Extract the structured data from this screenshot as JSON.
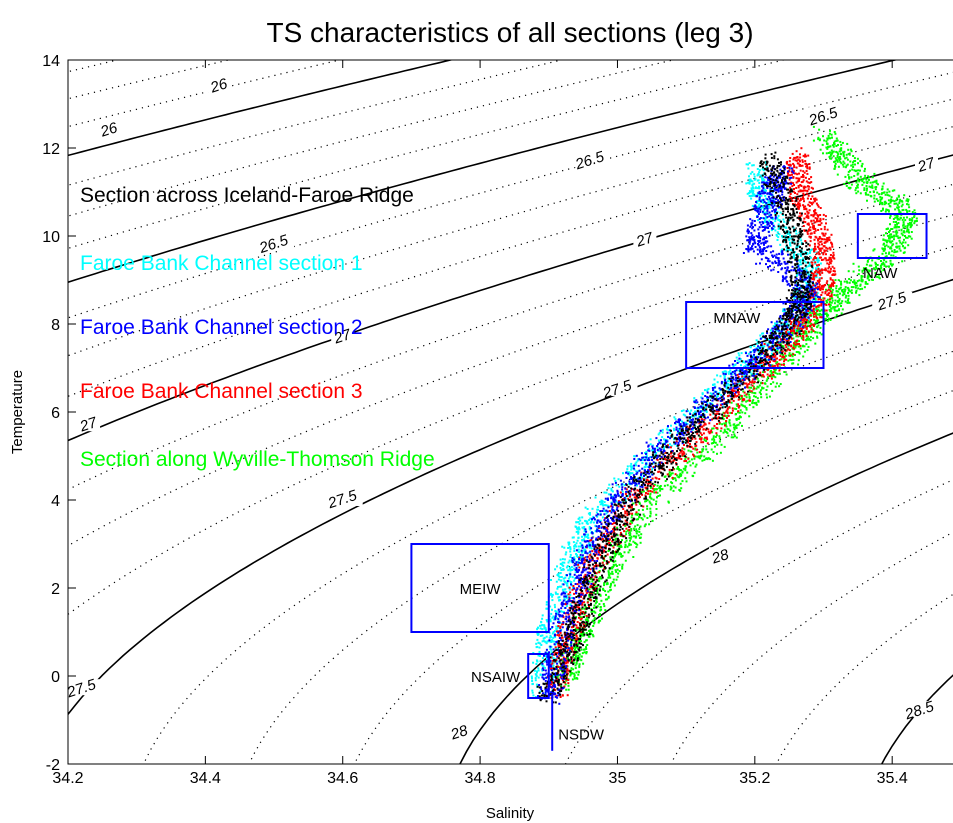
{
  "colors": {
    "section_1": "#00ffff",
    "section_2": "#0000ff",
    "section_3": "#ff0000",
    "section_4": "#00ff00",
    "section_0": "#000000",
    "boxes": "#0000ff"
  },
  "chart_data": {
    "type": "scatter",
    "title": "TS characteristics of all sections (leg 3)",
    "xlabel": "Salinity",
    "ylabel": "Temperature",
    "xlim": [
      34.2,
      35.49
    ],
    "ylim": [
      -2,
      14
    ],
    "xticks": [
      "34.2",
      "34.4",
      "34.6",
      "34.8",
      "35",
      "35.2",
      "35.4"
    ],
    "yticks": [
      "-2",
      "0",
      "2",
      "4",
      "6",
      "8",
      "10",
      "12",
      "14"
    ],
    "grid": false,
    "legend_placement": "upper-left",
    "series": [
      {
        "name": "Section across Iceland-Faroe Ridge",
        "color_key": "section_0",
        "path": [
          [
            34.9,
            -0.5
          ],
          [
            34.94,
            1.0
          ],
          [
            34.97,
            2.5
          ],
          [
            35.02,
            4.0
          ],
          [
            35.1,
            5.5
          ],
          [
            35.2,
            7.0
          ],
          [
            35.26,
            8.2
          ],
          [
            35.27,
            9.0
          ],
          [
            35.25,
            10.5
          ],
          [
            35.22,
            11.8
          ]
        ]
      },
      {
        "name": "Faroe Bank Channel section 1",
        "color_key": "section_1",
        "path": [
          [
            34.89,
            -0.3
          ],
          [
            34.9,
            1.0
          ],
          [
            34.93,
            2.5
          ],
          [
            34.96,
            3.5
          ],
          [
            35.05,
            5.0
          ],
          [
            35.15,
            6.5
          ],
          [
            35.22,
            7.5
          ],
          [
            35.27,
            8.3
          ],
          [
            35.28,
            9.3
          ],
          [
            35.22,
            10.5
          ],
          [
            35.2,
            11.5
          ]
        ]
      },
      {
        "name": "Faroe Bank Channel section 2",
        "color_key": "section_2",
        "path": [
          [
            34.9,
            -0.5
          ],
          [
            34.92,
            1.0
          ],
          [
            34.95,
            2.5
          ],
          [
            35.0,
            4.0
          ],
          [
            35.08,
            5.5
          ],
          [
            35.17,
            6.7
          ],
          [
            35.24,
            7.8
          ],
          [
            35.28,
            8.8
          ],
          [
            35.2,
            9.8
          ],
          [
            35.22,
            10.8
          ],
          [
            35.24,
            11.5
          ]
        ]
      },
      {
        "name": "Faroe Bank Channel section 3",
        "color_key": "section_3",
        "path": [
          [
            34.91,
            -0.4
          ],
          [
            34.93,
            1.0
          ],
          [
            34.96,
            2.5
          ],
          [
            35.02,
            4.0
          ],
          [
            35.12,
            5.5
          ],
          [
            35.2,
            6.8
          ],
          [
            35.26,
            7.8
          ],
          [
            35.3,
            8.8
          ],
          [
            35.3,
            9.8
          ],
          [
            35.27,
            10.8
          ],
          [
            35.26,
            11.8
          ]
        ]
      },
      {
        "name": "Section along Wyville-Thomson Ridge",
        "color_key": "section_4",
        "path": [
          [
            34.92,
            -0.2
          ],
          [
            34.95,
            1.0
          ],
          [
            34.99,
            2.5
          ],
          [
            35.05,
            4.0
          ],
          [
            35.15,
            5.5
          ],
          [
            35.22,
            6.8
          ],
          [
            35.28,
            7.9
          ],
          [
            35.33,
            8.8
          ],
          [
            35.4,
            9.6
          ],
          [
            35.42,
            10.5
          ],
          [
            35.35,
            11.3
          ],
          [
            35.3,
            12.3
          ]
        ]
      }
    ],
    "water_masses": [
      {
        "label": "MEIW",
        "s": [
          34.7,
          34.9
        ],
        "t": [
          1.0,
          3.0
        ]
      },
      {
        "label": "NSAIW",
        "s": [
          34.87,
          34.9
        ],
        "t": [
          -0.5,
          0.5
        ]
      },
      {
        "label": "NSDW",
        "s": [
          34.905,
          34.905
        ],
        "t": [
          -1.7,
          -0.4
        ]
      },
      {
        "label": "MNAW",
        "s": [
          35.1,
          35.3
        ],
        "t": [
          7.0,
          8.5
        ]
      },
      {
        "label": "NAW",
        "s": [
          35.35,
          35.45
        ],
        "t": [
          9.5,
          10.5
        ]
      }
    ],
    "isopycnal_labels": [
      {
        "text": "26",
        "s": 34.42,
        "t": 13.4
      },
      {
        "text": "26.5",
        "s": 35.3,
        "t": 12.7
      },
      {
        "text": "26",
        "s": 34.26,
        "t": 12.4
      },
      {
        "text": "26.5",
        "s": 34.96,
        "t": 11.7
      },
      {
        "text": "27",
        "s": 35.45,
        "t": 11.6
      },
      {
        "text": "26.5",
        "s": 34.5,
        "t": 9.8
      },
      {
        "text": "27",
        "s": 35.04,
        "t": 9.9
      },
      {
        "text": "27.5",
        "s": 35.4,
        "t": 8.5
      },
      {
        "text": "27",
        "s": 34.6,
        "t": 7.7
      },
      {
        "text": "27.5",
        "s": 35.0,
        "t": 6.5
      },
      {
        "text": "27",
        "s": 34.23,
        "t": 5.7
      },
      {
        "text": "27.5",
        "s": 34.6,
        "t": 4.0
      },
      {
        "text": "28",
        "s": 35.15,
        "t": 2.7
      },
      {
        "text": "27.5",
        "s": 34.22,
        "t": -0.3
      },
      {
        "text": "28",
        "s": 34.77,
        "t": -1.3
      },
      {
        "text": "28.5",
        "s": 35.44,
        "t": -0.8
      }
    ]
  }
}
